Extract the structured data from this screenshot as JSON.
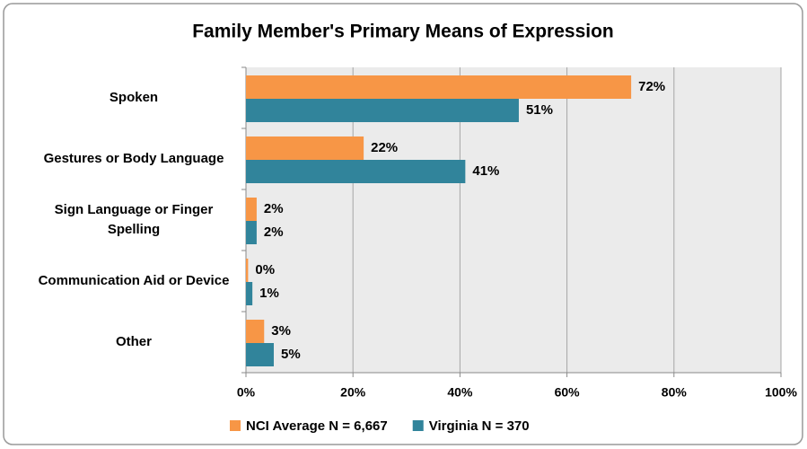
{
  "chart_data": {
    "type": "bar",
    "orientation": "horizontal",
    "title": "Family Member's Primary Means of Expression",
    "categories": [
      "Spoken",
      "Gestures or Body Language",
      "Sign Language or Finger Spelling",
      "Communication Aid or Device",
      "Other"
    ],
    "series": [
      {
        "name": "NCI Average N = 6,667",
        "color": "#f79646",
        "values": [
          72,
          22,
          2,
          0.4,
          3.4
        ],
        "value_labels": [
          "72%",
          "22%",
          "2%",
          "0%",
          "3%"
        ]
      },
      {
        "name": "Virginia N = 370",
        "color": "#31849b",
        "values": [
          51,
          41,
          2,
          1.2,
          5.2
        ],
        "value_labels": [
          "51%",
          "41%",
          "2%",
          "1%",
          "5%"
        ]
      }
    ],
    "xlim": [
      0,
      100
    ],
    "xticks": [
      {
        "value": 0,
        "label": "0%"
      },
      {
        "value": 20,
        "label": "20%"
      },
      {
        "value": 40,
        "label": "40%"
      },
      {
        "value": 60,
        "label": "60%"
      },
      {
        "value": 80,
        "label": "80%"
      },
      {
        "value": 100,
        "label": "100%"
      }
    ],
    "grid": true,
    "legend": "bottom"
  }
}
